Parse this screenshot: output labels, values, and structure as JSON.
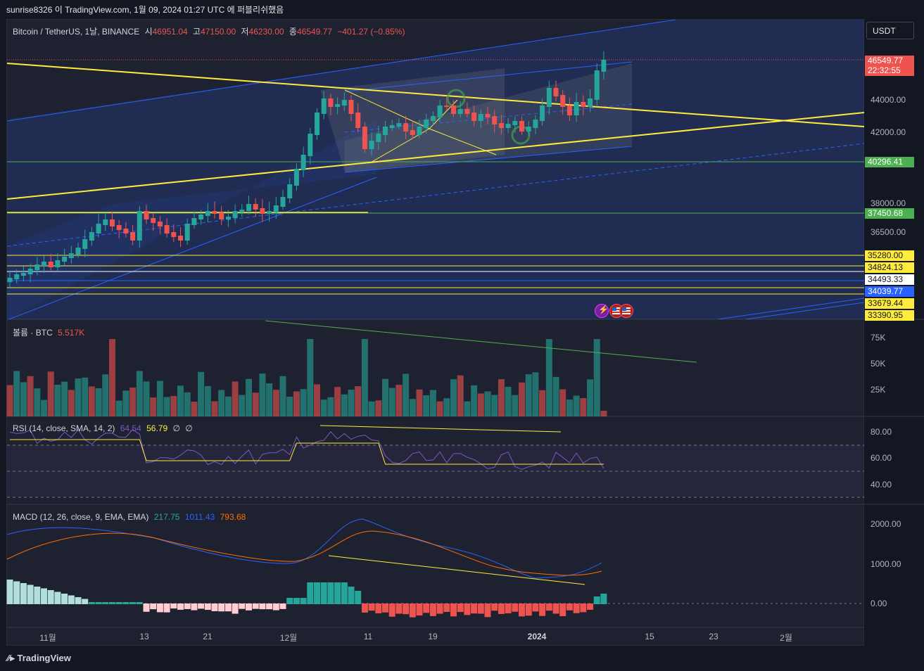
{
  "header": {
    "publish_line": "sunrise8326 이 TradingView.com, 1월 09, 2024 01:27 UTC 에 퍼블리쉬했음"
  },
  "main_legend": {
    "symbol": "Bitcoin / TetherUS, 1날, BINANCE",
    "open_label": "시",
    "open": "46951.04",
    "high_label": "고",
    "high": "47150.00",
    "low_label": "저",
    "low": "46230.00",
    "close_label": "종",
    "close": "46549.77",
    "change": "−401.27 (−0.85%)"
  },
  "currency_button": "USDT",
  "price_tags": {
    "last_price": "46549.77",
    "countdown": "22:32:55",
    "level_40296": "40296.41",
    "level_37450": "37450.68",
    "level_35280": "35280.00",
    "level_34824": "34824.13",
    "level_34493": "34493.33",
    "level_34039": "34039.77",
    "level_33679": "33679.44",
    "level_33390": "33390.95"
  },
  "price_axis": [
    "44000.00",
    "42000.00",
    "38000.00",
    "36500.00"
  ],
  "volume": {
    "label": "볼륨 · BTC",
    "value": "5.517K",
    "axis": [
      "75K",
      "50K",
      "25K"
    ]
  },
  "rsi": {
    "label": "RSI (14, close, SMA, 14, 2)",
    "value": "64.54",
    "ma_value": "56.79",
    "extra1": "∅",
    "extra2": "∅",
    "axis": [
      "80.00",
      "60.00",
      "40.00"
    ]
  },
  "macd": {
    "label": "MACD (12, 26, close, 9, EMA, EMA)",
    "hist": "217.75",
    "macd": "1011.43",
    "signal": "793.68",
    "axis": [
      "2000.00",
      "1000.00",
      "0.00"
    ]
  },
  "time_axis": [
    "11월",
    "13",
    "21",
    "12월",
    "11",
    "19",
    "2024",
    "15",
    "23",
    "2월"
  ],
  "footer": {
    "brand": "TradingView"
  },
  "colors": {
    "background": "#131722",
    "up": "#26a69a",
    "down": "#ef5350",
    "yellow_line": "#ffeb3b",
    "channel_blue": "#2962ff",
    "ma_line": "#2962ff",
    "signal_line": "#ff6d00",
    "rsi_line": "#7e57c2"
  },
  "icons": [
    "lightning-icon",
    "us-flag-icon",
    "us-flag-icon"
  ]
}
